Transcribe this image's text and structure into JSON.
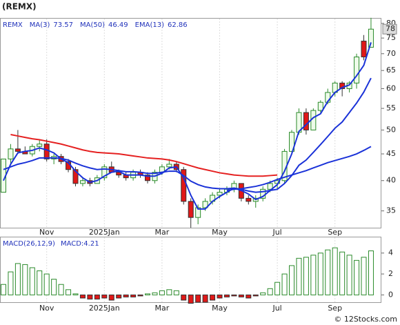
{
  "header": {
    "ticker": "(REMX)",
    "source": "© 12Stocks.com"
  },
  "chart_data": [
    {
      "type": "candlestick",
      "symbol": "REMX",
      "log_scale": true,
      "categories": [
        null,
        null,
        null,
        null,
        null,
        null,
        "Nov",
        null,
        null,
        null,
        null,
        null,
        null,
        null,
        "2025Jan",
        null,
        null,
        null,
        null,
        null,
        null,
        null,
        "Mar",
        null,
        null,
        null,
        null,
        null,
        null,
        null,
        "May",
        null,
        null,
        null,
        null,
        null,
        null,
        null,
        "Jul",
        null,
        null,
        null,
        null,
        null,
        null,
        null,
        "Sep",
        null,
        null,
        null,
        null,
        null
      ],
      "open": [
        38,
        44,
        46,
        45.5,
        45,
        46.5,
        47,
        44,
        44.5,
        43.5,
        42,
        39.5,
        40,
        39.5,
        40.5,
        42.5,
        41.5,
        41,
        40.5,
        41.5,
        41,
        40,
        41.5,
        42.5,
        43,
        42,
        36.5,
        34,
        35.5,
        36.5,
        37.5,
        38,
        38.5,
        39.5,
        37,
        36.5,
        37,
        38.5,
        39.5,
        40,
        45.5,
        49.5,
        54,
        50,
        54.5,
        56.5,
        59,
        61.5,
        60,
        61.5,
        74,
        72
      ],
      "high": [
        44,
        47,
        50,
        46.5,
        47,
        48,
        48,
        45,
        45,
        44,
        42.5,
        40.5,
        40.5,
        41,
        43,
        43.5,
        42,
        41.5,
        42,
        42,
        41.5,
        42,
        43,
        44,
        43.5,
        42.5,
        37,
        36,
        37,
        38,
        38.5,
        39,
        40,
        39.5,
        37.5,
        37.5,
        39,
        40,
        40.5,
        46,
        50,
        55,
        55,
        55,
        57,
        60,
        62,
        62,
        62,
        70,
        76,
        82
      ],
      "low": [
        38,
        43,
        45,
        45,
        44.5,
        45.5,
        43.5,
        43,
        43,
        41.5,
        39,
        39,
        39,
        39.5,
        40,
        41.5,
        40.5,
        40,
        40,
        40.5,
        39.5,
        39.5,
        41,
        42,
        41.5,
        36,
        32.5,
        33,
        35,
        36,
        37,
        37.5,
        38,
        36.5,
        36,
        35.5,
        36.5,
        38,
        38.5,
        39.5,
        45,
        49,
        49,
        50,
        54,
        56,
        58,
        58,
        59,
        60,
        68,
        72
      ],
      "close": [
        44,
        46,
        45.5,
        45,
        46.5,
        47,
        44,
        44.5,
        43.5,
        42,
        39.5,
        40,
        39.5,
        40.5,
        42.5,
        41.5,
        41,
        40.5,
        41.5,
        41,
        40,
        41.5,
        42.5,
        43,
        42,
        36.5,
        34,
        35.5,
        36.5,
        37.5,
        38,
        38.5,
        39.5,
        37,
        36.5,
        37,
        38.5,
        39.5,
        40,
        45.5,
        49.5,
        54,
        50,
        54.5,
        56.5,
        59,
        61.5,
        60,
        61.5,
        69,
        69,
        78
      ],
      "up_color": "#2a8a2a",
      "down_color": "#e01818",
      "series": [
        {
          "name": "MA(3)",
          "last": 73.57,
          "color": "#1a32d8",
          "values": [
            40,
            43,
            45.2,
            45.5,
            45.7,
            46.2,
            45.8,
            45.2,
            44,
            43.3,
            41.7,
            40.5,
            39.7,
            40,
            40.8,
            41.5,
            41.7,
            41,
            41,
            41,
            40.8,
            40.8,
            41.3,
            42.3,
            42.5,
            40.5,
            37.5,
            35.3,
            35.3,
            36.5,
            37.3,
            38,
            38.7,
            38.3,
            37.7,
            36.8,
            37.3,
            38.3,
            39.3,
            41.7,
            45,
            49.7,
            51.2,
            52.8,
            53.7,
            56.7,
            59,
            60.3,
            61,
            63.5,
            66.5,
            73.57
          ]
        },
        {
          "name": "MA(50)",
          "last": 46.49,
          "color": "#1a32d8",
          "values": [
            null,
            null,
            null,
            null,
            null,
            null,
            null,
            null,
            null,
            null,
            null,
            null,
            null,
            null,
            null,
            null,
            null,
            null,
            null,
            null,
            null,
            null,
            null,
            null,
            null,
            null,
            null,
            null,
            null,
            null,
            null,
            38.3,
            38.5,
            38.6,
            38.8,
            39,
            39.3,
            39.7,
            40.2,
            40.6,
            41,
            41.4,
            41.8,
            42.3,
            42.8,
            43.3,
            43.7,
            44.1,
            44.5,
            45,
            45.7,
            46.49
          ]
        },
        {
          "name": "EMA(13)",
          "last": 62.86,
          "color": "#1a32d8",
          "values": [
            42,
            42.5,
            43,
            43.3,
            43.7,
            44.2,
            44.2,
            44.2,
            44.1,
            43.8,
            43.2,
            42.7,
            42.3,
            42,
            42.1,
            42,
            41.8,
            41.6,
            41.6,
            41.5,
            41.3,
            41.3,
            41.5,
            41.7,
            41.7,
            40.9,
            39.9,
            39.3,
            38.9,
            38.7,
            38.6,
            38.6,
            38.7,
            38.5,
            38.2,
            38,
            38.1,
            38.3,
            38.5,
            39.5,
            40.9,
            42.8,
            43.8,
            45.3,
            46.9,
            48.6,
            50.4,
            51.8,
            54,
            56.3,
            59.1,
            62.86
          ]
        },
        {
          "color": "#e52020",
          "values": [
            null,
            49,
            48.7,
            48.4,
            48.1,
            47.9,
            47.6,
            47.3,
            47,
            46.6,
            46.2,
            45.8,
            45.5,
            45.3,
            45.2,
            45.1,
            45,
            44.8,
            44.6,
            44.4,
            44.2,
            44.1,
            44,
            43.8,
            43.5,
            43.1,
            42.7,
            42.3,
            42,
            41.7,
            41.4,
            41.2,
            41,
            40.9,
            40.8,
            40.8,
            40.8,
            40.9,
            41,
            null,
            null,
            null,
            null,
            null,
            null,
            null,
            null,
            null,
            null,
            null,
            null,
            null
          ]
        }
      ],
      "ylim": [
        32.5,
        81.7
      ],
      "yticks": [
        35,
        40,
        45,
        50,
        55,
        60,
        65,
        70,
        75,
        80
      ],
      "last_value": 78
    },
    {
      "type": "bar",
      "title": "MACD(26,12,9)",
      "value_label": "MACD:4.21",
      "categories": [
        null,
        null,
        null,
        null,
        null,
        null,
        "Nov",
        null,
        null,
        null,
        null,
        null,
        null,
        null,
        "2025Jan",
        null,
        null,
        null,
        null,
        null,
        null,
        null,
        "Mar",
        null,
        null,
        null,
        null,
        null,
        null,
        null,
        "May",
        null,
        null,
        null,
        null,
        null,
        null,
        null,
        "Jul",
        null,
        null,
        null,
        null,
        null,
        null,
        null,
        "Sep",
        null,
        null,
        null,
        null,
        null
      ],
      "values": [
        1.0,
        2.2,
        3.0,
        2.9,
        2.6,
        2.3,
        2.0,
        1.5,
        1.0,
        0.5,
        0.1,
        -0.3,
        -0.4,
        -0.4,
        -0.3,
        -0.5,
        -0.3,
        -0.2,
        -0.2,
        -0.1,
        0.1,
        0.2,
        0.4,
        0.5,
        0.4,
        -0.5,
        -0.8,
        -0.7,
        -0.7,
        -0.5,
        -0.3,
        -0.2,
        -0.1,
        -0.2,
        -0.3,
        -0.1,
        0.2,
        0.6,
        1.2,
        2.0,
        2.8,
        3.5,
        3.6,
        3.8,
        4.0,
        4.3,
        4.5,
        4.1,
        3.8,
        3.3,
        3.6,
        4.21
      ],
      "up_color": "#2a8a2a",
      "down_color": "#e01818",
      "ylim": [
        -0.7,
        5.5
      ],
      "yticks": [
        0,
        2,
        4
      ]
    }
  ]
}
